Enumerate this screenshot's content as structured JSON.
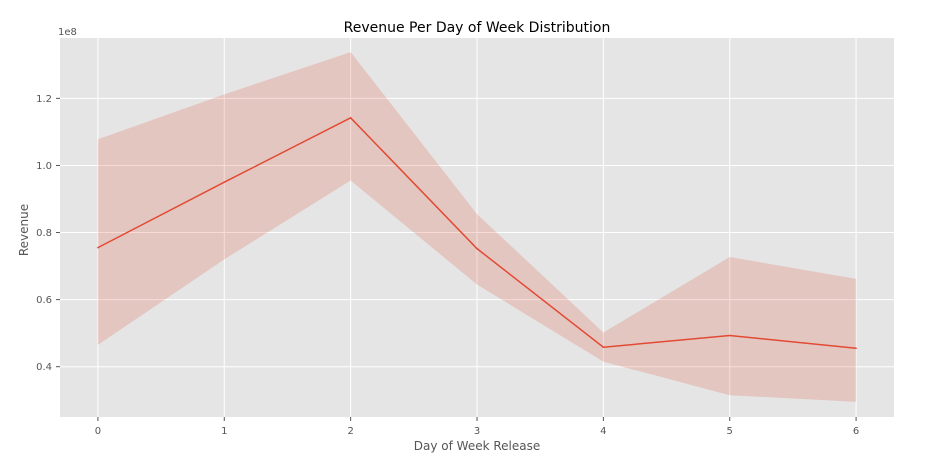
{
  "chart_data": {
    "type": "line",
    "title": "Revenue Per Day of Week Distribution",
    "xlabel": "Day of Week Release",
    "ylabel": "Revenue",
    "y_offset_label": "1e8",
    "x": [
      0,
      1,
      2,
      3,
      4,
      5,
      6
    ],
    "x_tick_labels": [
      "0",
      "1",
      "2",
      "3",
      "4",
      "5",
      "6"
    ],
    "y_ticks": [
      0.4,
      0.6,
      0.8,
      1.0,
      1.2
    ],
    "y_tick_labels": [
      "0.4",
      "0.6",
      "0.8",
      "1.0",
      "1.2"
    ],
    "xlim": [
      -0.3,
      6.3
    ],
    "ylim": [
      0.25,
      1.38
    ],
    "series": [
      {
        "values": [
          0.755,
          0.95,
          1.142,
          0.752,
          0.458,
          0.493,
          0.455
        ],
        "ci_lower": [
          0.465,
          0.72,
          0.955,
          0.645,
          0.415,
          0.315,
          0.295
        ],
        "ci_upper": [
          1.078,
          1.212,
          1.338,
          0.855,
          0.502,
          0.727,
          0.662
        ],
        "color": "#e24a33"
      }
    ],
    "grid": true,
    "background": "#e5e5e5"
  }
}
